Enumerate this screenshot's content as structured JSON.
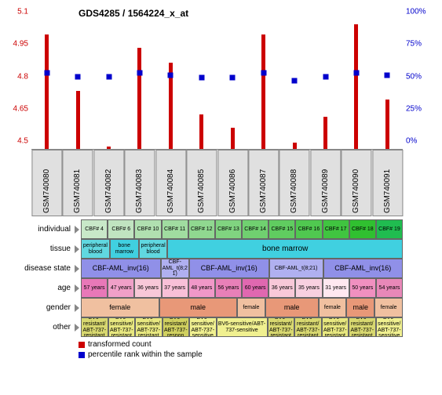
{
  "title": "GDS4285 / 1564224_x_at",
  "chart": {
    "type": "bar-with-markers",
    "y_left": {
      "min": 4.5,
      "max": 5.1,
      "ticks": [
        4.5,
        4.65,
        4.8,
        4.95,
        5.1
      ],
      "color": "#cc0000"
    },
    "y_right": {
      "min": 0,
      "max": 100,
      "ticks": [
        0,
        25,
        50,
        75,
        100
      ],
      "labels": [
        "0%",
        "25%",
        "50%",
        "75%",
        "100%"
      ],
      "color": "#0000cc"
    },
    "bar_color": "#cc0000",
    "marker_color": "#0000cc",
    "xlabel_bg": "#e0e0e0",
    "samples": [
      {
        "id": "GSM740080",
        "value": 5.03,
        "pct": 59
      },
      {
        "id": "GSM740081",
        "value": 4.77,
        "pct": 56
      },
      {
        "id": "GSM740082",
        "value": 4.51,
        "pct": 56
      },
      {
        "id": "GSM740083",
        "value": 4.97,
        "pct": 59
      },
      {
        "id": "GSM740084",
        "value": 4.9,
        "pct": 57
      },
      {
        "id": "GSM740085",
        "value": 4.66,
        "pct": 55
      },
      {
        "id": "GSM740086",
        "value": 4.6,
        "pct": 55
      },
      {
        "id": "GSM740087",
        "value": 5.03,
        "pct": 59
      },
      {
        "id": "GSM740088",
        "value": 4.53,
        "pct": 53
      },
      {
        "id": "GSM740089",
        "value": 4.65,
        "pct": 56
      },
      {
        "id": "GSM740090",
        "value": 5.08,
        "pct": 59
      },
      {
        "id": "GSM740091",
        "value": 4.73,
        "pct": 57
      }
    ]
  },
  "meta_rows": [
    {
      "label": "individual",
      "cells": [
        {
          "text": "CBF# 4",
          "span": 1,
          "bg": "#c8e8c8"
        },
        {
          "text": "CBF# 6",
          "span": 1,
          "bg": "#c0e4c0"
        },
        {
          "text": "CBF# 10",
          "span": 1,
          "bg": "#b0e0b0"
        },
        {
          "text": "CBF# 11",
          "span": 1,
          "bg": "#a0dca0"
        },
        {
          "text": "CBF# 12",
          "span": 1,
          "bg": "#90d890"
        },
        {
          "text": "CBF# 13",
          "span": 1,
          "bg": "#80d480"
        },
        {
          "text": "CBF# 14",
          "span": 1,
          "bg": "#70d070"
        },
        {
          "text": "CBF# 15",
          "span": 1,
          "bg": "#60cc60"
        },
        {
          "text": "CBF# 16",
          "span": 1,
          "bg": "#50c850"
        },
        {
          "text": "CBF# 17",
          "span": 1,
          "bg": "#40c440"
        },
        {
          "text": "CBF# 18",
          "span": 1,
          "bg": "#30c030"
        },
        {
          "text": "CBF# 19",
          "span": 1,
          "bg": "#20bc50"
        }
      ]
    },
    {
      "label": "tissue",
      "cells": [
        {
          "text": "peripheral blood",
          "span": 1,
          "bg": "#60d8e0"
        },
        {
          "text": "bone marrow",
          "span": 1,
          "bg": "#40d0e0"
        },
        {
          "text": "peripheral blood",
          "span": 1,
          "bg": "#60d8e0"
        },
        {
          "text": "bone marrow",
          "span": 9,
          "bg": "#40d0e0",
          "fontsize": 10
        }
      ]
    },
    {
      "label": "disease state",
      "cells": [
        {
          "text": "CBF-AML_inv(16)",
          "span": 3,
          "bg": "#9090e8",
          "fontsize": 9
        },
        {
          "text": "CBF-AML_t(8;21)",
          "span": 1,
          "bg": "#b0b0f0"
        },
        {
          "text": "CBF-AML_inv(16)",
          "span": 3,
          "bg": "#9090e8",
          "fontsize": 9
        },
        {
          "text": "CBF-AML_t(8;21)",
          "span": 2,
          "bg": "#b0b0f0"
        },
        {
          "text": "CBF-AML_inv(16)",
          "span": 3,
          "bg": "#9090e8",
          "fontsize": 9
        }
      ]
    },
    {
      "label": "age",
      "cells": [
        {
          "text": "57 years",
          "span": 1,
          "bg": "#e878b8"
        },
        {
          "text": "47 years",
          "span": 1,
          "bg": "#f0a0c8"
        },
        {
          "text": "36 years",
          "span": 1,
          "bg": "#f8c8d8"
        },
        {
          "text": "37 years",
          "span": 1,
          "bg": "#f8c0d8"
        },
        {
          "text": "48 years",
          "span": 1,
          "bg": "#f098c8"
        },
        {
          "text": "56 years",
          "span": 1,
          "bg": "#e880b8"
        },
        {
          "text": "60 years",
          "span": 1,
          "bg": "#e068b0"
        },
        {
          "text": "36 years",
          "span": 1,
          "bg": "#f8c8d8"
        },
        {
          "text": "35 years",
          "span": 1,
          "bg": "#f8d0e0"
        },
        {
          "text": "31 years",
          "span": 1,
          "bg": "#ffe8f0"
        },
        {
          "text": "50 years",
          "span": 1,
          "bg": "#f090c0"
        },
        {
          "text": "54 years",
          "span": 1,
          "bg": "#e888b8"
        }
      ]
    },
    {
      "label": "gender",
      "cells": [
        {
          "text": "female",
          "span": 3,
          "bg": "#f0c0a0",
          "fontsize": 9
        },
        {
          "text": "male",
          "span": 3,
          "bg": "#e89878",
          "fontsize": 9
        },
        {
          "text": "female",
          "span": 1,
          "bg": "#f0c0a0"
        },
        {
          "text": "male",
          "span": 2,
          "bg": "#e89878",
          "fontsize": 9
        },
        {
          "text": "female",
          "span": 1,
          "bg": "#f0c0a0"
        },
        {
          "text": "male",
          "span": 1,
          "bg": "#e89878",
          "fontsize": 9
        },
        {
          "text": "female",
          "span": 1,
          "bg": "#f0c0a0"
        }
      ]
    },
    {
      "label": "other",
      "cells": [
        {
          "text": "BV6-resistant/ABT-737-resistant",
          "span": 1,
          "bg": "#d8d870"
        },
        {
          "text": "BV6-sensitive/ABT-737-resistant",
          "span": 1,
          "bg": "#e8e880"
        },
        {
          "text": "BV6-sensitive/ABT-737-resistant",
          "span": 1,
          "bg": "#e8e880"
        },
        {
          "text": "BV6-resistant/ABT-737-respon",
          "span": 1,
          "bg": "#d0d060"
        },
        {
          "text": "BV6-sensitive/ABT-737-sensitive",
          "span": 1,
          "bg": "#f0f090"
        },
        {
          "text": "BV6-sensitive/ABT-737-sensitive",
          "span": 2,
          "bg": "#f0f090"
        },
        {
          "text": "BV6-resistant/ABT-737-resistant",
          "span": 1,
          "bg": "#d8d870"
        },
        {
          "text": "BV6-resistant/ABT-737-resistant",
          "span": 1,
          "bg": "#d8d870"
        },
        {
          "text": "BV6-sensitive/ABT-737-resistant",
          "span": 1,
          "bg": "#e8e880"
        },
        {
          "text": "BV6-resistant/ABT-737-resistant",
          "span": 1,
          "bg": "#d8d870"
        },
        {
          "text": "BV6-sensitive/ABT-737-sensitive",
          "span": 1,
          "bg": "#f0f090"
        }
      ]
    }
  ],
  "legend": {
    "items": [
      {
        "color": "#cc0000",
        "label": "transformed count"
      },
      {
        "color": "#0000cc",
        "label": "percentile rank within the sample"
      }
    ]
  }
}
